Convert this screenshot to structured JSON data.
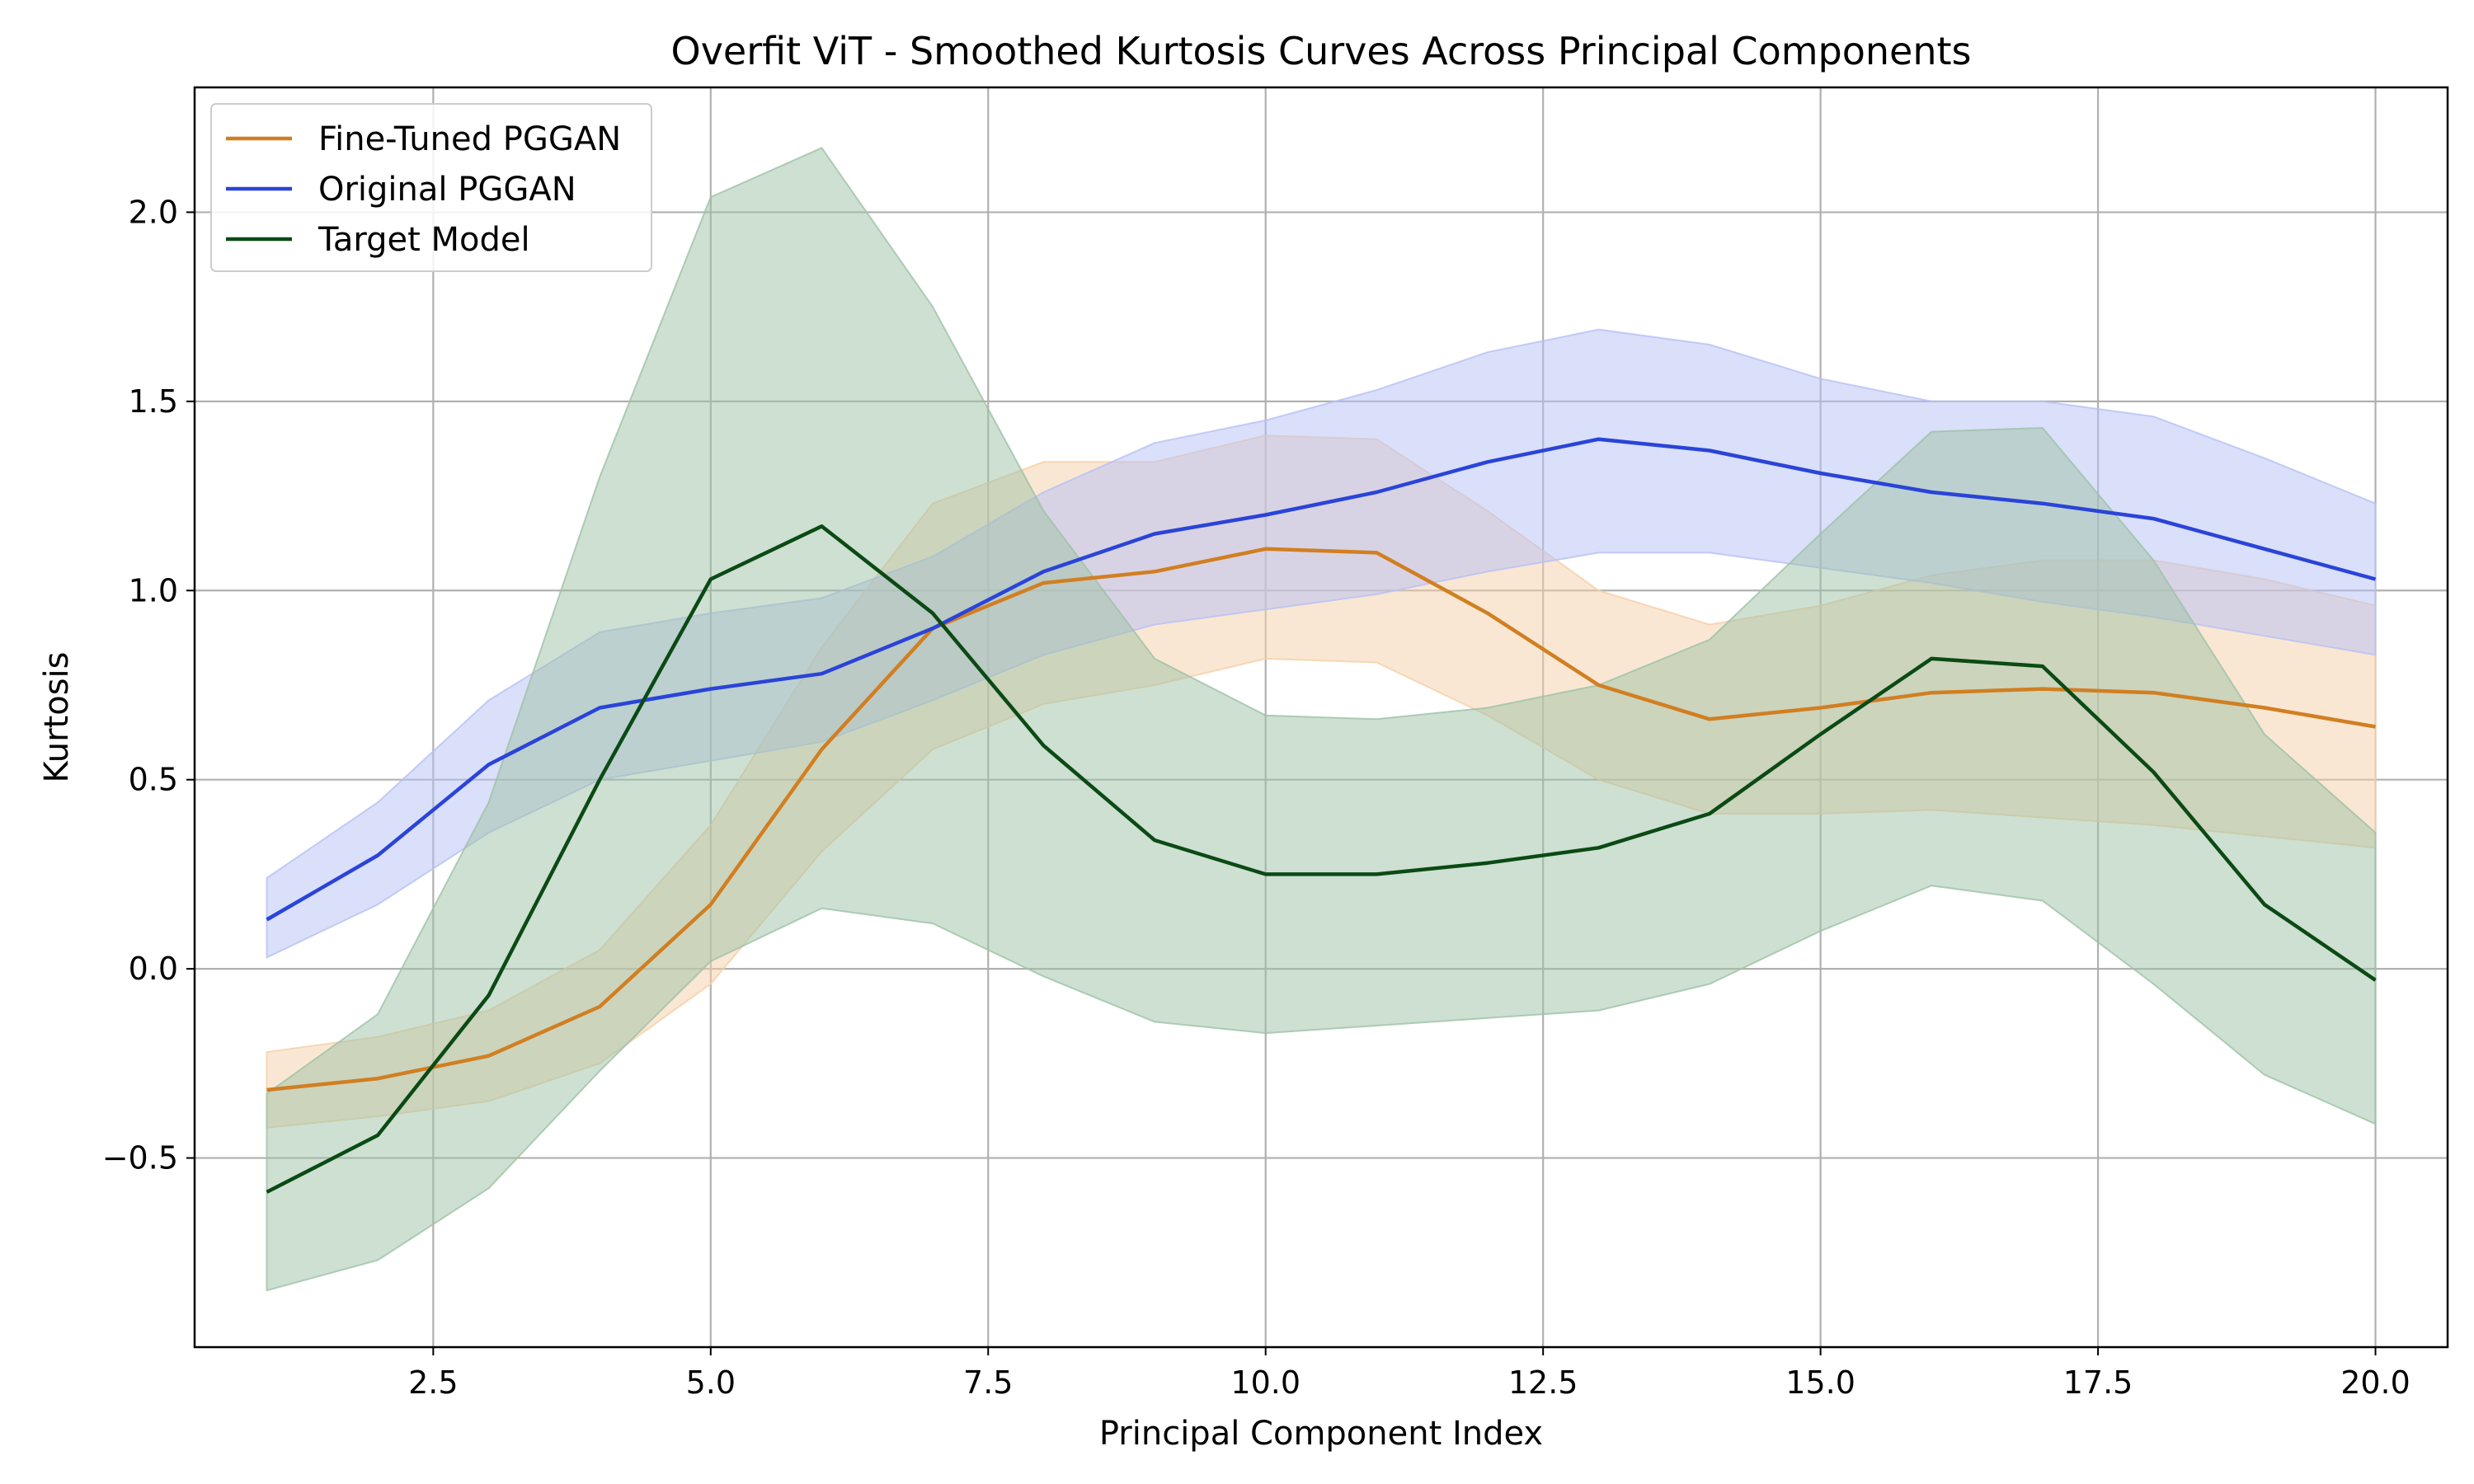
{
  "chart_data": {
    "type": "line",
    "title": "Overfit ViT - Smoothed Kurtosis Curves Across Principal Components",
    "xlabel": "Principal Component Index",
    "ylabel": "Kurtosis",
    "xlim": [
      0.35,
      20.65
    ],
    "ylim": [
      -1.0,
      2.33
    ],
    "xticks": [
      2.5,
      5.0,
      7.5,
      10.0,
      12.5,
      15.0,
      17.5,
      20.0
    ],
    "xtick_labels": [
      "2.5",
      "5.0",
      "7.5",
      "10.0",
      "12.5",
      "15.0",
      "17.5",
      "20.0"
    ],
    "yticks": [
      -0.5,
      0.0,
      0.5,
      1.0,
      1.5,
      2.0
    ],
    "ytick_labels": [
      "−0.5",
      "0.0",
      "0.5",
      "1.0",
      "1.5",
      "2.0"
    ],
    "grid": true,
    "legend_position": "top-left",
    "x": [
      1,
      2,
      3,
      4,
      5,
      6,
      7,
      8,
      9,
      10,
      11,
      12,
      13,
      14,
      15,
      16,
      17,
      18,
      19,
      20
    ],
    "series": [
      {
        "name": "Fine-Tuned PGGAN",
        "color": "#d17f22",
        "fill_color": "#f5cfa8",
        "values": [
          -0.32,
          -0.29,
          -0.23,
          -0.1,
          0.17,
          0.58,
          0.9,
          1.02,
          1.05,
          1.11,
          1.1,
          0.94,
          0.75,
          0.66,
          0.69,
          0.73,
          0.74,
          0.73,
          0.69,
          0.64
        ],
        "upper": [
          -0.22,
          -0.18,
          -0.11,
          0.05,
          0.38,
          0.85,
          1.23,
          1.34,
          1.34,
          1.41,
          1.4,
          1.21,
          1.0,
          0.91,
          0.96,
          1.04,
          1.08,
          1.08,
          1.03,
          0.96
        ],
        "lower": [
          -0.42,
          -0.39,
          -0.35,
          -0.25,
          -0.04,
          0.31,
          0.58,
          0.7,
          0.75,
          0.82,
          0.81,
          0.67,
          0.5,
          0.41,
          0.41,
          0.42,
          0.4,
          0.38,
          0.35,
          0.32
        ]
      },
      {
        "name": "Original PGGAN",
        "color": "#2a44d8",
        "fill_color": "#b6c0f5",
        "values": [
          0.13,
          0.3,
          0.54,
          0.69,
          0.74,
          0.78,
          0.9,
          1.05,
          1.15,
          1.2,
          1.26,
          1.34,
          1.4,
          1.37,
          1.31,
          1.26,
          1.23,
          1.19,
          1.11,
          1.03
        ],
        "upper": [
          0.24,
          0.44,
          0.71,
          0.89,
          0.94,
          0.98,
          1.09,
          1.26,
          1.39,
          1.45,
          1.53,
          1.63,
          1.69,
          1.65,
          1.56,
          1.5,
          1.5,
          1.46,
          1.35,
          1.23
        ],
        "lower": [
          0.03,
          0.17,
          0.36,
          0.5,
          0.55,
          0.6,
          0.71,
          0.83,
          0.91,
          0.95,
          0.99,
          1.05,
          1.1,
          1.1,
          1.06,
          1.02,
          0.97,
          0.93,
          0.88,
          0.83
        ]
      },
      {
        "name": "Target Model",
        "color": "#0b4a14",
        "fill_color": "#9ec2a6",
        "values": [
          -0.59,
          -0.44,
          -0.07,
          0.5,
          1.03,
          1.17,
          0.94,
          0.59,
          0.34,
          0.25,
          0.25,
          0.28,
          0.32,
          0.41,
          0.62,
          0.82,
          0.8,
          0.52,
          0.17,
          -0.03
        ],
        "upper": [
          -0.33,
          -0.12,
          0.44,
          1.3,
          2.04,
          2.17,
          1.75,
          1.21,
          0.82,
          0.67,
          0.66,
          0.69,
          0.75,
          0.87,
          1.15,
          1.42,
          1.43,
          1.08,
          0.62,
          0.36
        ],
        "lower": [
          -0.85,
          -0.77,
          -0.58,
          -0.27,
          0.02,
          0.16,
          0.12,
          -0.02,
          -0.14,
          -0.17,
          -0.15,
          -0.13,
          -0.11,
          -0.04,
          0.1,
          0.22,
          0.18,
          -0.04,
          -0.28,
          -0.41
        ]
      }
    ]
  }
}
